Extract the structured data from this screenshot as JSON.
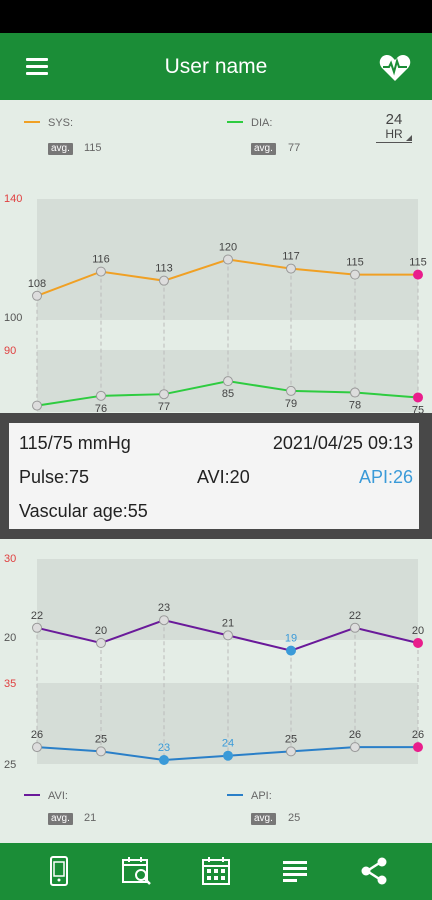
{
  "header": {
    "title": "User name",
    "menu_icon": "hamburger-menu-icon",
    "heart_icon": "heart-pulse-icon"
  },
  "legend_top": {
    "sys": {
      "label": "SYS:",
      "color": "#f0a024",
      "avg_badge": "avg.",
      "avg_value": "115"
    },
    "dia": {
      "label": "DIA:",
      "color": "#2ecc40",
      "avg_badge": "avg.",
      "avg_value": "77"
    },
    "range_button": {
      "number": "24",
      "unit": "HR"
    }
  },
  "info": {
    "bp": "115/75 mmHg",
    "datetime": "2021/04/25 09:13",
    "pulse": "Pulse:75",
    "avi": "AVI:20",
    "api": "API:26",
    "vascular_age": "Vascular age:55"
  },
  "legend_bottom": {
    "avi": {
      "label": "AVI:",
      "color": "#6a1a9a",
      "avg_badge": "avg.",
      "avg_value": "21"
    },
    "api": {
      "label": "API:",
      "color": "#2a7fc8",
      "avg_badge": "avg.",
      "avg_value": "25"
    }
  },
  "chart_data": [
    {
      "type": "line",
      "x": [
        1,
        2,
        3,
        4,
        5,
        6,
        7
      ],
      "ticks_upper": [
        "140",
        "100"
      ],
      "ticks_lower": [
        "90"
      ],
      "series": [
        {
          "name": "SYS",
          "values": [
            108,
            116,
            113,
            120,
            117,
            115,
            115
          ],
          "color": "#f0a024"
        },
        {
          "name": "DIA",
          "values": [
            70,
            76,
            77,
            85,
            79,
            78,
            75
          ],
          "color": "#2ecc40"
        }
      ],
      "labels": [
        [
          "108",
          "116",
          "113",
          "120",
          "117",
          "115",
          "115"
        ],
        [
          "",
          "76",
          "77",
          "85",
          "79",
          "78",
          "75"
        ]
      ],
      "grid": false
    },
    {
      "type": "line",
      "x": [
        1,
        2,
        3,
        4,
        5,
        6,
        7
      ],
      "ticks_upper": [
        "30",
        "20"
      ],
      "ticks_lower": [
        "35",
        "25"
      ],
      "series": [
        {
          "name": "AVI",
          "values": [
            22,
            20,
            23,
            21,
            19,
            22,
            20
          ],
          "color": "#6a1a9a"
        },
        {
          "name": "API",
          "values": [
            26,
            25,
            23,
            24,
            25,
            26,
            26
          ],
          "color": "#2a7fc8"
        }
      ],
      "labels": [
        [
          "22",
          "20",
          "23",
          "21",
          "19",
          "22",
          "20"
        ],
        [
          "26",
          "25",
          "23",
          "24",
          "25",
          "26",
          "26"
        ]
      ],
      "grid": false
    }
  ],
  "bottom_nav": [
    {
      "icon": "device-icon"
    },
    {
      "icon": "calendar-search-icon"
    },
    {
      "icon": "calendar-grid-icon"
    },
    {
      "icon": "list-icon"
    },
    {
      "icon": "share-icon"
    }
  ]
}
